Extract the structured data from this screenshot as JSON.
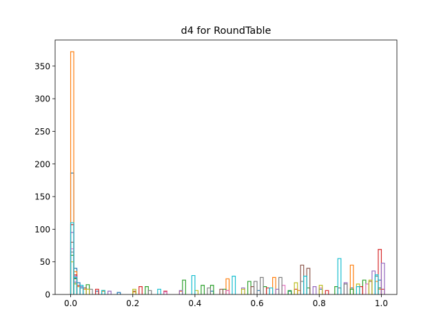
{
  "chart_data": {
    "type": "histogram-step",
    "title": "d4 for RoundTable",
    "xlabel": "",
    "ylabel": "",
    "xlim": [
      -0.05,
      1.05
    ],
    "ylim": [
      0,
      390
    ],
    "x_ticks": [
      0.0,
      0.2,
      0.4,
      0.6,
      0.8,
      1.0
    ],
    "x_tick_labels": [
      "0.0",
      "0.2",
      "0.4",
      "0.6",
      "0.8",
      "1.0"
    ],
    "y_ticks": [
      0,
      50,
      100,
      150,
      200,
      250,
      300,
      350
    ],
    "y_tick_labels": [
      "0",
      "50",
      "100",
      "150",
      "200",
      "250",
      "300",
      "350"
    ],
    "grid": false,
    "legend": "none",
    "bin_width": 0.01,
    "series": [
      {
        "color": "#1f77b4",
        "bins": [
          [
            0.0,
            186
          ],
          [
            0.01,
            40
          ],
          [
            0.02,
            18
          ],
          [
            0.03,
            10
          ],
          [
            0.05,
            8
          ],
          [
            0.08,
            5
          ],
          [
            0.15,
            3
          ],
          [
            0.3,
            4
          ],
          [
            0.45,
            5
          ],
          [
            0.6,
            6
          ],
          [
            0.7,
            5
          ],
          [
            0.8,
            8
          ],
          [
            0.9,
            10
          ],
          [
            0.99,
            22
          ]
        ]
      },
      {
        "color": "#ff7f0e",
        "bins": [
          [
            0.0,
            372
          ],
          [
            0.01,
            35
          ],
          [
            0.02,
            12
          ],
          [
            0.04,
            8
          ],
          [
            0.1,
            5
          ],
          [
            0.2,
            4
          ],
          [
            0.35,
            5
          ],
          [
            0.5,
            24
          ],
          [
            0.65,
            26
          ],
          [
            0.73,
            6
          ],
          [
            0.9,
            45
          ],
          [
            0.98,
            20
          ],
          [
            0.99,
            8
          ]
        ]
      },
      {
        "color": "#2ca02c",
        "bins": [
          [
            0.0,
            60
          ],
          [
            0.01,
            25
          ],
          [
            0.05,
            15
          ],
          [
            0.1,
            6
          ],
          [
            0.24,
            12
          ],
          [
            0.36,
            22
          ],
          [
            0.42,
            14
          ],
          [
            0.45,
            14
          ],
          [
            0.49,
            8
          ],
          [
            0.57,
            20
          ],
          [
            0.62,
            12
          ],
          [
            0.7,
            6
          ],
          [
            0.76,
            10
          ],
          [
            0.85,
            12
          ],
          [
            0.9,
            8
          ],
          [
            0.94,
            22
          ],
          [
            0.99,
            10
          ]
        ]
      },
      {
        "color": "#d62728",
        "bins": [
          [
            0.0,
            107
          ],
          [
            0.01,
            30
          ],
          [
            0.02,
            14
          ],
          [
            0.08,
            8
          ],
          [
            0.22,
            12
          ],
          [
            0.3,
            5
          ],
          [
            0.5,
            6
          ],
          [
            0.63,
            10
          ],
          [
            0.72,
            8
          ],
          [
            0.82,
            6
          ],
          [
            0.93,
            12
          ],
          [
            0.99,
            69
          ],
          [
            1.0,
            8
          ]
        ]
      },
      {
        "color": "#9467bd",
        "bins": [
          [
            0.0,
            95
          ],
          [
            0.01,
            28
          ],
          [
            0.03,
            12
          ],
          [
            0.12,
            5
          ],
          [
            0.35,
            6
          ],
          [
            0.55,
            10
          ],
          [
            0.66,
            8
          ],
          [
            0.78,
            12
          ],
          [
            0.88,
            18
          ],
          [
            0.97,
            36
          ],
          [
            1.0,
            48
          ]
        ]
      },
      {
        "color": "#8c564b",
        "bins": [
          [
            0.0,
            80
          ],
          [
            0.01,
            24
          ],
          [
            0.04,
            10
          ],
          [
            0.2,
            5
          ],
          [
            0.48,
            8
          ],
          [
            0.58,
            12
          ],
          [
            0.74,
            45
          ],
          [
            0.76,
            40
          ],
          [
            0.86,
            10
          ],
          [
            0.96,
            20
          ]
        ]
      },
      {
        "color": "#e377c2",
        "bins": [
          [
            0.0,
            70
          ],
          [
            0.01,
            20
          ],
          [
            0.05,
            8
          ],
          [
            0.3,
            4
          ],
          [
            0.5,
            6
          ],
          [
            0.68,
            14
          ],
          [
            0.8,
            10
          ],
          [
            0.95,
            16
          ]
        ]
      },
      {
        "color": "#7f7f7f",
        "bins": [
          [
            0.0,
            65
          ],
          [
            0.01,
            18
          ],
          [
            0.06,
            8
          ],
          [
            0.25,
            6
          ],
          [
            0.44,
            10
          ],
          [
            0.59,
            20
          ],
          [
            0.61,
            26
          ],
          [
            0.67,
            26
          ],
          [
            0.74,
            20
          ],
          [
            0.88,
            16
          ],
          [
            0.98,
            28
          ]
        ]
      },
      {
        "color": "#bcbd22",
        "bins": [
          [
            0.0,
            50
          ],
          [
            0.01,
            16
          ],
          [
            0.05,
            8
          ],
          [
            0.2,
            8
          ],
          [
            0.4,
            6
          ],
          [
            0.55,
            8
          ],
          [
            0.72,
            18
          ],
          [
            0.8,
            14
          ],
          [
            0.92,
            16
          ],
          [
            0.96,
            22
          ]
        ]
      },
      {
        "color": "#17becf",
        "bins": [
          [
            0.0,
            110
          ],
          [
            0.01,
            26
          ],
          [
            0.03,
            14
          ],
          [
            0.1,
            6
          ],
          [
            0.28,
            8
          ],
          [
            0.39,
            29
          ],
          [
            0.52,
            28
          ],
          [
            0.64,
            10
          ],
          [
            0.75,
            28
          ],
          [
            0.86,
            55
          ],
          [
            0.92,
            12
          ],
          [
            0.98,
            30
          ]
        ]
      }
    ]
  }
}
